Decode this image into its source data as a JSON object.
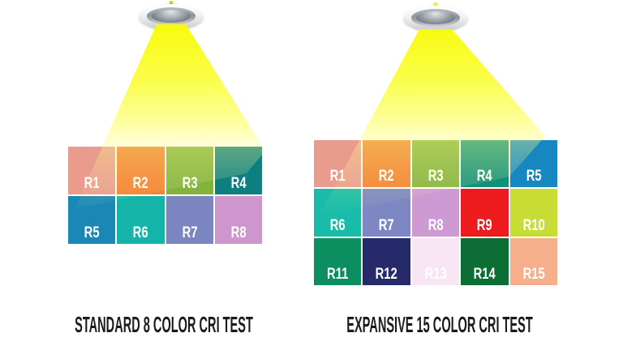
{
  "illustration": {
    "subject": "CRI color rendering test comparison under downlight"
  },
  "panels": [
    {
      "id": "standard",
      "title": "STANDARD 8 COLOR CRI TEST",
      "columns": 4,
      "swatches": [
        {
          "label": "R1",
          "color": "#E99C8E"
        },
        {
          "label": "R2",
          "color": "#F28131"
        },
        {
          "label": "R3",
          "color": "#83B23D"
        },
        {
          "label": "R4",
          "color": "#0E7F80"
        },
        {
          "label": "R5",
          "color": "#1B87B5"
        },
        {
          "label": "R6",
          "color": "#14B5A8"
        },
        {
          "label": "R7",
          "color": "#7B86C1"
        },
        {
          "label": "R8",
          "color": "#CE96CC"
        }
      ]
    },
    {
      "id": "expansive",
      "title": "EXPANSIVE 15 COLOR CRI TEST",
      "columns": 5,
      "swatches": [
        {
          "label": "R1",
          "color": "#E99C8E"
        },
        {
          "label": "R2",
          "color": "#F28131"
        },
        {
          "label": "R3",
          "color": "#83B23D"
        },
        {
          "label": "R4",
          "color": "#11917A"
        },
        {
          "label": "R5",
          "color": "#1687C0"
        },
        {
          "label": "R6",
          "color": "#18BCA9"
        },
        {
          "label": "R7",
          "color": "#7C87C3"
        },
        {
          "label": "R8",
          "color": "#CE9AD3"
        },
        {
          "label": "R9",
          "color": "#EE1B1E"
        },
        {
          "label": "R10",
          "color": "#C8DC36"
        },
        {
          "label": "R11",
          "color": "#0B8F60"
        },
        {
          "label": "R12",
          "color": "#262A6B"
        },
        {
          "label": "R13",
          "color": "#F9E6F4"
        },
        {
          "label": "R14",
          "color": "#0C6E34"
        },
        {
          "label": "R15",
          "color": "#F5AF8B"
        }
      ]
    }
  ]
}
